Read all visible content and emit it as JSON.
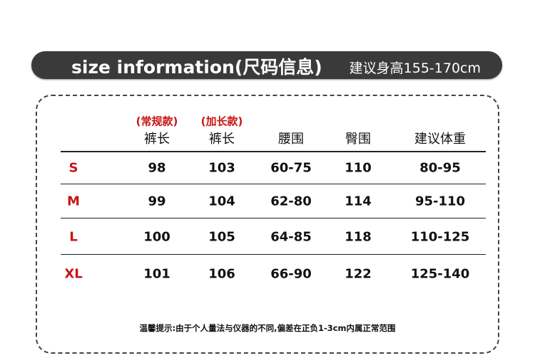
{
  "banner": {
    "title": "size information(尺码信息)",
    "height_hint": "建议身高155-170cm",
    "color": "#3a3a3a"
  },
  "table": {
    "subheaders": [
      "(常规款)",
      "(加长款)"
    ],
    "headers": [
      "裤长",
      "裤长",
      "腰围",
      "臀围",
      "建议体重"
    ],
    "rows": [
      {
        "size": "S",
        "values": [
          "98",
          "103",
          "60-75",
          "110",
          "80-95"
        ]
      },
      {
        "size": "M",
        "values": [
          "99",
          "104",
          "62-80",
          "114",
          "95-110"
        ]
      },
      {
        "size": "L",
        "values": [
          "100",
          "105",
          "64-85",
          "118",
          "110-125"
        ]
      },
      {
        "size": "XL",
        "values": [
          "101",
          "106",
          "66-90",
          "122",
          "125-140"
        ]
      }
    ]
  },
  "note": "温馨提示:由于个人量法与仪器的不同,偏差在正负1-3cm内属正常范围",
  "accent": "#c81414"
}
